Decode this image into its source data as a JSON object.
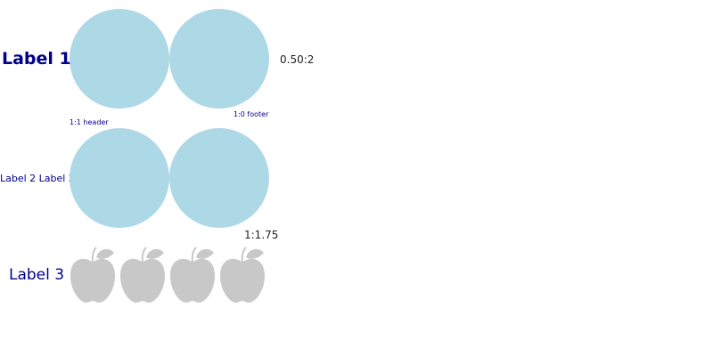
{
  "rows": [
    {
      "label": "Label 1",
      "circle_count": 2,
      "header": "1:1 header",
      "footer": "1:0 footer",
      "value": "0.50:2"
    },
    {
      "label": "Label 2 Label 2",
      "circle_count": 2,
      "value": "1:1.75"
    },
    {
      "label": "Label 3",
      "apple_count": 4
    }
  ],
  "colors": {
    "label": "#00008b",
    "circle": "#add8e6",
    "apple": "#c8c8c8",
    "value_text": "#222222"
  },
  "icons": {
    "pictogram": "apple-icon"
  }
}
